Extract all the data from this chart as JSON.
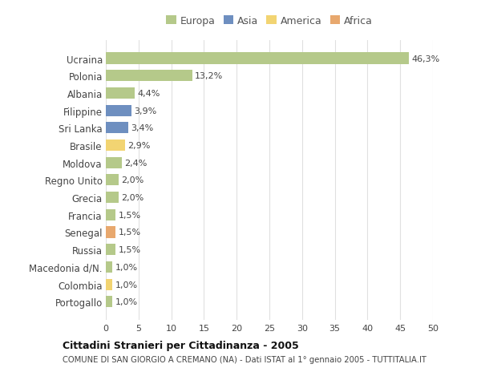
{
  "categories": [
    "Portogallo",
    "Colombia",
    "Macedonia d/N.",
    "Russia",
    "Senegal",
    "Francia",
    "Grecia",
    "Regno Unito",
    "Moldova",
    "Brasile",
    "Sri Lanka",
    "Filippine",
    "Albania",
    "Polonia",
    "Ucraina"
  ],
  "values": [
    1.0,
    1.0,
    1.0,
    1.5,
    1.5,
    1.5,
    2.0,
    2.0,
    2.4,
    2.9,
    3.4,
    3.9,
    4.4,
    13.2,
    46.3
  ],
  "labels": [
    "1,0%",
    "1,0%",
    "1,0%",
    "1,5%",
    "1,5%",
    "1,5%",
    "2,0%",
    "2,0%",
    "2,4%",
    "2,9%",
    "3,4%",
    "3,9%",
    "4,4%",
    "13,2%",
    "46,3%"
  ],
  "continents": [
    "Europa",
    "America",
    "Europa",
    "Europa",
    "Africa",
    "Europa",
    "Europa",
    "Europa",
    "Europa",
    "America",
    "Asia",
    "Asia",
    "Europa",
    "Europa",
    "Europa"
  ],
  "colors": {
    "Europa": "#b5c98a",
    "Asia": "#6e8fc0",
    "America": "#f2d472",
    "Africa": "#e8a86e"
  },
  "legend_order": [
    "Europa",
    "Asia",
    "America",
    "Africa"
  ],
  "legend_colors": [
    "#b5c98a",
    "#6e8fc0",
    "#f2d472",
    "#e8a86e"
  ],
  "background_color": "#ffffff",
  "plot_bg_color": "#ffffff",
  "title": "Cittadini Stranieri per Cittadinanza - 2005",
  "subtitle": "COMUNE DI SAN GIORGIO A CREMANO (NA) - Dati ISTAT al 1° gennaio 2005 - TUTTITALIA.IT",
  "xlim": [
    0,
    50
  ],
  "xticks": [
    0,
    5,
    10,
    15,
    20,
    25,
    30,
    35,
    40,
    45,
    50
  ],
  "grid_color": "#e0e0e0",
  "bar_height": 0.65,
  "label_fontsize": 8.0,
  "ytick_fontsize": 8.5,
  "xtick_fontsize": 8.0
}
